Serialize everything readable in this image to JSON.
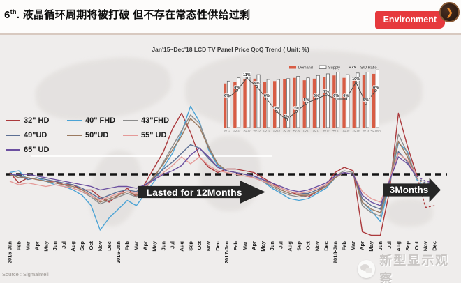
{
  "header": {
    "title_num": "6",
    "title_sup": "th",
    "title_rest": ". 液晶循环周期将被打破 但不存在常态性供给过剩",
    "badge": "Environment"
  },
  "chart": {
    "title": "Jan'15~Dec'18 LCD TV Panel Price QoQ Trend ( Unit: %)"
  },
  "annotations": {
    "arrow1": "Lasted for 12Months",
    "arrow2": "3Months"
  },
  "source": "Source : Sigmaintell",
  "watermark": "新型显示观察",
  "chart_data": [
    {
      "type": "line",
      "title": "Jan'15~Dec'18 LCD TV Panel Price QoQ Trend ( Unit: %)",
      "ylabel": "QoQ %",
      "ylim": [
        -20,
        22
      ],
      "zero_line": true,
      "forecast_from_index": 45,
      "x": [
        "2015-Jan",
        "Feb",
        "Mar",
        "Apr",
        "May",
        "Jun",
        "Jul",
        "Aug",
        "Sep",
        "Oct",
        "Nov",
        "Dec",
        "2016-Jan",
        "Feb",
        "Mar",
        "Apr",
        "May",
        "Jun",
        "Jul",
        "Aug",
        "Sep",
        "Oct",
        "Nov",
        "Dec",
        "2017-Jan",
        "Feb",
        "Mar",
        "Apr",
        "May",
        "Jun",
        "Jul",
        "Aug",
        "Sep",
        "Oct",
        "Nov",
        "Dec",
        "2018-Jan",
        "Feb",
        "Mar",
        "Apr",
        "May",
        "Jun",
        "Jul",
        "Aug",
        "Sep",
        "Oct",
        "Nov",
        "Dec"
      ],
      "series": [
        {
          "name": "32\" HD",
          "color": "#ab393c",
          "values": [
            0.5,
            -2.5,
            -1,
            -1.5,
            -2,
            -2,
            -3,
            -3,
            -4.5,
            -4.5,
            -6.5,
            -8,
            -6,
            -4,
            -6.5,
            -2.5,
            2,
            6.5,
            13,
            17.5,
            12,
            5,
            2,
            0.5,
            1.5,
            1.5,
            1,
            0.5,
            -1,
            -2.5,
            -4,
            -5,
            -6,
            -6.5,
            -5,
            -3,
            0.5,
            2,
            1,
            -16.5,
            -17.5,
            -17.5,
            -5,
            17.5,
            8,
            0,
            -9.5,
            -9
          ]
        },
        {
          "name": "40\" FHD",
          "color": "#4ba3d5",
          "values": [
            0.5,
            1,
            -1.5,
            -1,
            -2,
            -3,
            -3.5,
            -4.5,
            -6,
            -9,
            -16,
            -12.5,
            -10,
            -7.5,
            -9,
            -5.5,
            -2,
            2,
            6,
            12,
            19.5,
            15,
            7,
            2.5,
            1,
            0.5,
            0,
            -0.5,
            -2,
            -4,
            -5.5,
            -7,
            -7.5,
            -7,
            -5.5,
            -4,
            -1,
            0.5,
            0,
            -8,
            -10.5,
            -13.5,
            -3,
            9,
            6.5,
            -1.5,
            -3.5,
            -4.5
          ]
        },
        {
          "name": "43\"FHD",
          "color": "#8c8c8c",
          "values": [
            0,
            -0.5,
            -1,
            -1.5,
            -2,
            -2.5,
            -3,
            -4,
            -5,
            -6.5,
            -8.5,
            -7.5,
            -6.5,
            -5.5,
            -6.5,
            -4,
            -1,
            3.5,
            8,
            12.5,
            17,
            14.5,
            8,
            3,
            1,
            0.5,
            0,
            -1,
            -2,
            -3.5,
            -5,
            -6,
            -6.5,
            -6,
            -5,
            -3.5,
            -0.5,
            1,
            0.5,
            -9,
            -11,
            -12,
            -2.5,
            11.5,
            6,
            -1,
            -3,
            -3.5
          ]
        },
        {
          "name": "49\"UD",
          "color": "#5c6f94",
          "values": [
            0,
            -0.5,
            -1.5,
            -1,
            -1.5,
            -2,
            -2.5,
            -3,
            -4,
            -5.5,
            -7,
            -6,
            -5,
            -4.5,
            -5,
            -3,
            -1,
            1.5,
            3.5,
            6,
            8.5,
            7.5,
            4.5,
            2,
            1,
            0.5,
            0,
            -1,
            -2,
            -3,
            -4,
            -5,
            -5.5,
            -5.5,
            -4.5,
            -3,
            -0.5,
            0.5,
            0,
            -7,
            -9,
            -10,
            -2,
            6.5,
            3.5,
            -1,
            -2.5,
            -3
          ]
        },
        {
          "name": "50\"UD",
          "color": "#9b7a60",
          "values": [
            0,
            -1,
            -1,
            -1.5,
            -2,
            -2.5,
            -3,
            -3.5,
            -4.5,
            -6,
            -8,
            -7,
            -6,
            -5,
            -6,
            -3.5,
            -0.5,
            3,
            7,
            11,
            16,
            13.5,
            7.5,
            3,
            1,
            0.5,
            0,
            -0.5,
            -1.5,
            -3,
            -4.5,
            -5.5,
            -6,
            -6,
            -5,
            -3.5,
            -1,
            0.5,
            0,
            -8,
            -10,
            -11,
            -2.5,
            9.5,
            5,
            -1,
            -3,
            -3.5
          ]
        },
        {
          "name": "55\" UD",
          "color": "#e59a98",
          "values": [
            -2,
            -3,
            -2.5,
            -3,
            -3.5,
            -3,
            -3.5,
            -4,
            -5,
            -6,
            -7.5,
            -6.5,
            -5.5,
            -5,
            -5.5,
            -3.5,
            -1.5,
            0.5,
            2.5,
            5,
            3,
            5,
            2.5,
            1,
            0.5,
            0,
            -0.5,
            -1,
            -2,
            -3,
            -4,
            -5,
            -5.5,
            -5,
            -4,
            -3,
            -0.5,
            0.5,
            0,
            -5,
            -7,
            -8,
            -1.5,
            6,
            4,
            -0.5,
            -2,
            -2.5
          ]
        },
        {
          "name": "65\" UD",
          "color": "#6b4fa0",
          "values": [
            0,
            0,
            0,
            -0.5,
            -1,
            -1.5,
            -2,
            -2.5,
            -3,
            -3.5,
            -4.5,
            -4,
            -3.5,
            -3.5,
            -4,
            -3,
            -1.5,
            0,
            1,
            2.5,
            5.5,
            7.5,
            5,
            2,
            1,
            0.5,
            0,
            -0.5,
            -1.5,
            -2.5,
            -3.5,
            -4.5,
            -5,
            -4.5,
            -3.5,
            -2.5,
            -0.5,
            0.5,
            0,
            -6,
            -8,
            -9,
            -2,
            5,
            3,
            -0.5,
            -2,
            -2.5
          ]
        }
      ]
    },
    {
      "type": "bar",
      "categories": [
        "1Q'15",
        "2Q'15",
        "3Q'15",
        "4Q'15",
        "1Q'16",
        "2Q'16",
        "3Q'16",
        "4Q'16",
        "1Q'17",
        "2Q'17",
        "3Q'17",
        "4Q'17",
        "1Q'18",
        "2Q'18",
        "3Q'18",
        "4Q'18(F)"
      ],
      "series": [
        {
          "name": "Demand",
          "color": "#d85c44",
          "values": [
            55,
            57,
            60,
            61,
            57,
            58,
            60,
            62,
            59,
            61,
            63,
            65,
            62,
            62,
            66,
            67
          ]
        },
        {
          "name": "Supply",
          "color": "#fdfdfd",
          "values": [
            58,
            62,
            67,
            66,
            60,
            60,
            61,
            64,
            62,
            65,
            67,
            69,
            66,
            68,
            69,
            72
          ]
        }
      ],
      "line": {
        "name": "S/D Ratio",
        "color": "#4a4a4a",
        "values": [
          6,
          8,
          11,
          9,
          6,
          3,
          1,
          3,
          5,
          6,
          7,
          6,
          6,
          10,
          5,
          8
        ],
        "unit": "%",
        "forecast_last_segment": true
      },
      "legend_position": "top-right"
    }
  ]
}
